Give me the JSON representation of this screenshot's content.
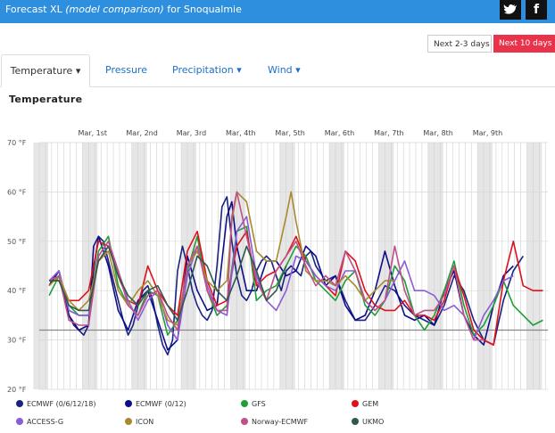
{
  "header": {
    "title_prefix": "Forecast XL",
    "title_italic": "(model comparison)",
    "title_suffix": "for Snoqualmie",
    "bg_color": "#2e8fde",
    "social": [
      {
        "name": "twitter-icon",
        "glyph": "🐦"
      },
      {
        "name": "facebook-icon",
        "glyph": "f"
      }
    ]
  },
  "range_buttons": {
    "next_2_3": "Next 2-3 days",
    "next_10": "Next 10 days",
    "active_color": "#e8334a"
  },
  "tabs": [
    {
      "label": "Temperature",
      "has_dropdown": true,
      "active": true
    },
    {
      "label": "Pressure",
      "has_dropdown": false,
      "active": false
    },
    {
      "label": "Precipitation",
      "has_dropdown": true,
      "active": false
    },
    {
      "label": "Wind",
      "has_dropdown": true,
      "active": false
    }
  ],
  "section_title": "Temperature",
  "chart_data": {
    "type": "line",
    "title": "Temperature",
    "xlabel": "",
    "ylabel": "",
    "x_unit": "days from start of Feb 28",
    "xlim": [
      0,
      10.3
    ],
    "ylim": [
      20,
      70
    ],
    "y_ticks": [
      20,
      30,
      40,
      50,
      60,
      70
    ],
    "y_tick_labels": [
      "20 °F",
      "30 °F",
      "40 °F",
      "50 °F",
      "60 °F",
      "70 °F"
    ],
    "day_labels": [
      "Mar, 1st",
      "Mar, 2nd",
      "Mar, 3rd",
      "Mar, 4th",
      "Mar, 5th",
      "Mar, 6th",
      "Mar, 7th",
      "Mar, 8th",
      "Mar, 9th"
    ],
    "freezing_line": 32,
    "grid": true,
    "legend_position": "bottom",
    "series": [
      {
        "name": "ECMWF (0/6/12/18)",
        "color": "#1a237e",
        "x": [
          0.2,
          0.3,
          0.4,
          0.5,
          0.6,
          0.7,
          0.8,
          0.9,
          1.0,
          1.1,
          1.2,
          1.3,
          1.4,
          1.5,
          1.6,
          1.7,
          1.8,
          1.9,
          2.0,
          2.1,
          2.2,
          2.3,
          2.4,
          2.5,
          2.6,
          2.7,
          2.8,
          2.9,
          3.0,
          3.1,
          3.2,
          3.3,
          3.4,
          3.5,
          3.6,
          3.7,
          3.8,
          3.9,
          4.0,
          4.1,
          4.2,
          4.3,
          4.4,
          4.5,
          4.6,
          4.7,
          4.8,
          4.9,
          5.0,
          5.1,
          5.2,
          5.3,
          5.4,
          5.5,
          5.6,
          5.8,
          6.0,
          6.2,
          6.4,
          6.6,
          6.8,
          7.0,
          7.2,
          7.4,
          7.6,
          7.8,
          8.0,
          8.2,
          8.4,
          8.6,
          8.8,
          9.0,
          9.2,
          9.4,
          9.6,
          9.8
        ],
        "values": [
          41,
          43,
          44,
          40,
          35,
          33,
          32,
          31,
          33,
          44,
          51,
          50,
          46,
          42,
          38,
          34,
          31,
          33,
          37,
          40,
          41,
          38,
          33,
          29,
          27,
          30,
          44,
          49,
          45,
          40,
          37,
          35,
          34,
          36,
          45,
          57,
          59,
          50,
          43,
          39,
          38,
          40,
          44,
          46,
          47,
          46,
          43,
          40,
          44,
          45,
          44,
          43,
          47,
          48,
          45,
          42,
          43,
          38,
          34,
          34,
          37,
          41,
          40,
          37,
          35,
          34,
          33,
          37,
          43,
          40,
          34,
          30,
          29,
          38,
          44,
          47
        ]
      },
      {
        "name": "ECMWF (0/12)",
        "color": "#0d0d8a",
        "x": [
          0.2,
          0.4,
          0.6,
          0.8,
          1.0,
          1.1,
          1.2,
          1.4,
          1.6,
          1.8,
          2.0,
          2.2,
          2.4,
          2.6,
          2.8,
          3.0,
          3.2,
          3.4,
          3.6,
          3.8,
          3.9,
          4.0,
          4.2,
          4.4,
          4.6,
          4.8,
          5.0,
          5.2,
          5.4,
          5.6,
          5.8,
          6.0,
          6.2,
          6.4,
          6.6,
          6.8,
          7.0,
          7.2,
          7.4,
          7.6,
          7.8,
          8.0,
          8.2,
          8.4,
          8.6,
          8.8,
          9.0,
          9.2,
          9.4,
          9.6
        ],
        "values": [
          41,
          44,
          35,
          32,
          33,
          49,
          51,
          45,
          36,
          32,
          38,
          40,
          34,
          28,
          30,
          47,
          40,
          36,
          37,
          55,
          58,
          49,
          40,
          40,
          46,
          46,
          43,
          44,
          49,
          47,
          41,
          43,
          37,
          34,
          35,
          40,
          48,
          41,
          35,
          34,
          35,
          33,
          40,
          44,
          35,
          31,
          29,
          37,
          43,
          45
        ]
      },
      {
        "name": "GFS",
        "color": "#1f9e3a",
        "x": [
          0.2,
          0.4,
          0.6,
          0.8,
          1.0,
          1.2,
          1.4,
          1.6,
          1.8,
          2.0,
          2.2,
          2.4,
          2.6,
          2.8,
          3.0,
          3.2,
          3.4,
          3.6,
          3.8,
          4.0,
          4.2,
          4.4,
          4.6,
          4.8,
          5.0,
          5.2,
          5.4,
          5.6,
          5.8,
          6.0,
          6.2,
          6.4,
          6.6,
          6.8,
          7.0,
          7.2,
          7.4,
          7.6,
          7.8,
          8.0,
          8.2,
          8.4,
          8.6,
          8.8,
          9.0,
          9.2,
          9.4,
          9.6,
          9.8,
          10.0,
          10.2
        ],
        "values": [
          39,
          43,
          37,
          35,
          35,
          48,
          51,
          41,
          37,
          35,
          40,
          39,
          31,
          34,
          44,
          51,
          40,
          35,
          37,
          52,
          53,
          38,
          40,
          41,
          45,
          49,
          47,
          42,
          40,
          38,
          42,
          44,
          37,
          35,
          38,
          45,
          42,
          35,
          32,
          35,
          40,
          46,
          37,
          31,
          33,
          37,
          42,
          37,
          35,
          33,
          34
        ]
      },
      {
        "name": "GEM",
        "color": "#e0101a",
        "x": [
          0.2,
          0.4,
          0.6,
          0.8,
          1.0,
          1.2,
          1.4,
          1.6,
          1.8,
          2.0,
          2.2,
          2.4,
          2.6,
          2.8,
          3.0,
          3.2,
          3.4,
          3.6,
          3.8,
          4.0,
          4.2,
          4.4,
          4.6,
          4.8,
          5.0,
          5.2,
          5.4,
          5.6,
          5.8,
          6.0,
          6.2,
          6.4,
          6.6,
          6.8,
          7.0,
          7.2,
          7.4,
          7.6,
          7.8,
          8.0,
          8.2,
          8.4,
          8.6,
          8.8,
          9.0,
          9.2,
          9.4,
          9.6,
          9.8,
          10.0,
          10.2
        ],
        "values": [
          42,
          42,
          38,
          38,
          40,
          50,
          49,
          43,
          38,
          37,
          45,
          40,
          37,
          35,
          48,
          52,
          42,
          37,
          38,
          49,
          52,
          41,
          43,
          44,
          47,
          51,
          46,
          43,
          41,
          39,
          48,
          46,
          40,
          37,
          36,
          36,
          38,
          35,
          35,
          34,
          38,
          45,
          39,
          32,
          30,
          29,
          42,
          50,
          41,
          40,
          40
        ]
      },
      {
        "name": "ACCESS-G",
        "color": "#8a5cd6",
        "x": [
          0.2,
          0.4,
          0.6,
          0.8,
          1.0,
          1.2,
          1.4,
          1.6,
          1.8,
          2.0,
          2.2,
          2.4,
          2.6,
          2.8,
          3.0,
          3.2,
          3.4,
          3.6,
          3.8,
          4.0,
          4.2,
          4.4,
          4.6,
          4.8,
          5.0,
          5.2,
          5.4,
          5.6,
          5.8,
          6.0,
          6.2,
          6.4,
          6.6,
          6.8,
          7.0,
          7.2,
          7.4,
          7.6,
          7.8,
          8.0,
          8.2,
          8.4,
          8.6,
          8.8,
          9.0,
          9.2,
          9.4,
          9.6
        ],
        "values": [
          42,
          44,
          36,
          35,
          35,
          47,
          50,
          44,
          38,
          34,
          38,
          40,
          33,
          30,
          43,
          49,
          41,
          36,
          35,
          52,
          55,
          43,
          38,
          36,
          40,
          47,
          46,
          43,
          41,
          40,
          44,
          44,
          38,
          36,
          38,
          42,
          46,
          40,
          40,
          39,
          36,
          37,
          35,
          30,
          35,
          38,
          42,
          43
        ]
      },
      {
        "name": "ICON",
        "color": "#a88a2e",
        "x": [
          0.2,
          0.4,
          0.6,
          0.8,
          1.0,
          1.2,
          1.4,
          1.6,
          1.8,
          2.0,
          2.2,
          2.4,
          2.6,
          2.8,
          3.0,
          3.2,
          3.4,
          3.6,
          3.8,
          3.9,
          4.0,
          4.2,
          4.4,
          4.6,
          4.8,
          5.0,
          5.1,
          5.2,
          5.4,
          5.6,
          5.8,
          6.0,
          6.2,
          6.4,
          6.6,
          6.8,
          7.0,
          7.2
        ],
        "values": [
          41,
          43,
          38,
          36,
          38,
          46,
          48,
          40,
          37,
          40,
          42,
          39,
          34,
          33,
          45,
          48,
          42,
          40,
          42,
          54,
          60,
          58,
          48,
          46,
          46,
          55,
          60,
          54,
          44,
          42,
          42,
          41,
          43,
          41,
          38,
          40,
          42,
          42
        ]
      },
      {
        "name": "Norway-ECMWF",
        "color": "#c0508a",
        "x": [
          0.2,
          0.4,
          0.6,
          0.8,
          1.0,
          1.2,
          1.4,
          1.6,
          1.8,
          2.0,
          2.2,
          2.4,
          2.6,
          2.8,
          3.0,
          3.2,
          3.4,
          3.6,
          3.8,
          3.9,
          4.0,
          4.2,
          4.4,
          4.6,
          4.8,
          5.0,
          5.2,
          5.4,
          5.6,
          5.8,
          6.0,
          6.2,
          6.4,
          6.6,
          6.8,
          7.0,
          7.2,
          7.4,
          7.6,
          7.8,
          8.0,
          8.2,
          8.4,
          8.6,
          8.8,
          9.0
        ],
        "values": [
          42,
          43,
          34,
          33,
          33,
          47,
          50,
          44,
          37,
          35,
          39,
          40,
          35,
          32,
          45,
          49,
          40,
          36,
          36,
          55,
          60,
          51,
          42,
          38,
          44,
          47,
          50,
          45,
          41,
          43,
          41,
          48,
          44,
          38,
          36,
          38,
          49,
          40,
          35,
          36,
          36,
          39,
          45,
          35,
          30,
          30
        ]
      },
      {
        "name": "UKMO",
        "color": "#2f5a4a",
        "x": [
          0.2,
          0.4,
          0.6,
          0.8,
          1.0,
          1.2,
          1.4,
          1.6,
          1.8,
          2.0,
          2.2,
          2.4,
          2.6,
          2.8,
          3.0,
          3.2,
          3.4,
          3.6,
          3.8,
          4.0,
          4.2,
          4.4,
          4.6,
          4.8,
          5.0
        ],
        "values": [
          42,
          42,
          37,
          36,
          36,
          46,
          49,
          43,
          39,
          37,
          40,
          41,
          37,
          34,
          40,
          47,
          45,
          40,
          38,
          43,
          49,
          44,
          38,
          40,
          45
        ]
      }
    ]
  }
}
